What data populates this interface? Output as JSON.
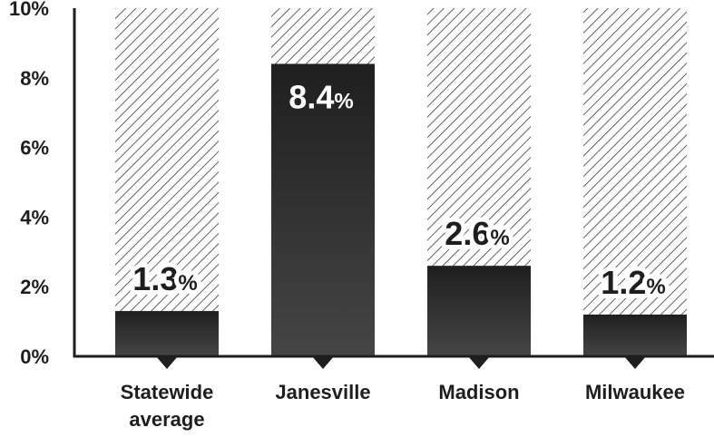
{
  "chart_data": {
    "type": "bar",
    "categories": [
      "Statewide average",
      "Janesville",
      "Madison",
      "Milwaukee"
    ],
    "category_lines": [
      [
        "Statewide",
        "average"
      ],
      [
        "Janesville"
      ],
      [
        "Madison"
      ],
      [
        "Milwaukee"
      ]
    ],
    "values": [
      1.3,
      8.4,
      2.6,
      1.2
    ],
    "value_labels": [
      {
        "number": "1.3",
        "unit": "%"
      },
      {
        "number": "8.4",
        "unit": "%"
      },
      {
        "number": "2.6",
        "unit": "%"
      },
      {
        "number": "1.2",
        "unit": "%"
      }
    ],
    "label_inside": [
      false,
      true,
      false,
      false
    ],
    "yticks": [
      {
        "value": 0,
        "label": "0%"
      },
      {
        "value": 2,
        "label": "2%"
      },
      {
        "value": 4,
        "label": "4%"
      },
      {
        "value": 6,
        "label": "6%"
      },
      {
        "value": 8,
        "label": "8%"
      },
      {
        "value": 10,
        "label": "10%"
      }
    ],
    "ylim": [
      0,
      10
    ],
    "background_fill": "hatched",
    "grid": false,
    "colors": {
      "bar": "#2f2f2f",
      "text": "#1e1e1e",
      "hatch": "#3a3a3a",
      "label_on_bar": "#ffffff"
    }
  }
}
